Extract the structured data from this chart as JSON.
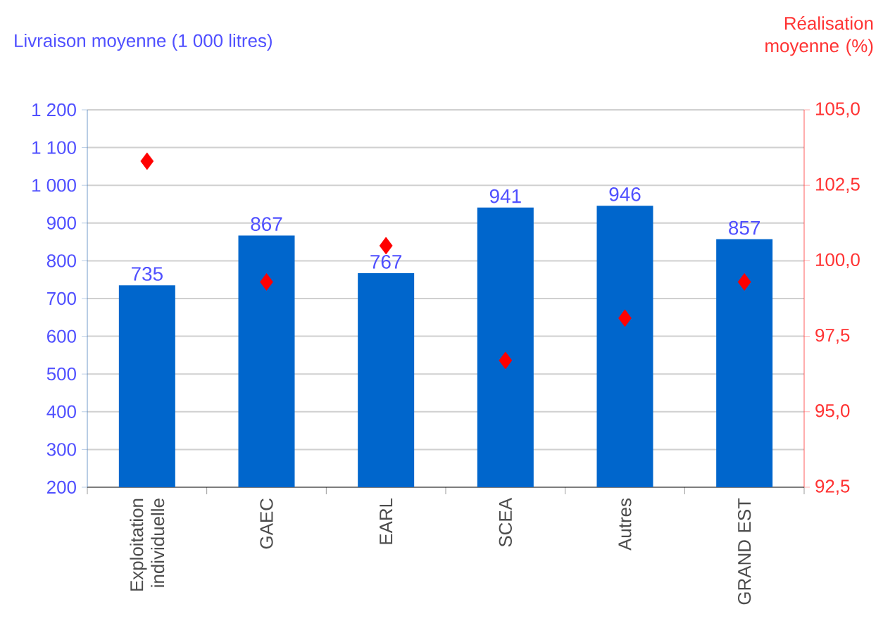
{
  "chart_data": {
    "type": "bar",
    "ylabel": "Livraison moyenne (1 000 litres)",
    "y2label": "Réalisation moyenne (%)",
    "categories": [
      "Exploitation individuelle",
      "GAEC",
      "EARL",
      "SCEA",
      "Autres",
      "GRAND EST"
    ],
    "series": [
      {
        "color": "#0066cc",
        "values": [
          735,
          867,
          767,
          941,
          946,
          857
        ],
        "value_labels": [
          "735",
          "867",
          "767",
          "941",
          "946",
          "857"
        ]
      },
      {
        "type": "scatter",
        "axis": "y2",
        "color": "#ff0000",
        "marker": "diamond",
        "values": [
          103.3,
          99.3,
          100.5,
          96.7,
          98.1,
          99.3
        ]
      }
    ],
    "ylim": [
      200,
      1200
    ],
    "yticks": [
      200,
      300,
      400,
      500,
      600,
      700,
      800,
      900,
      {
        "value": 1000,
        "label": "1 000"
      },
      {
        "value": 1100,
        "label": "1 100"
      },
      {
        "value": 1200,
        "label": "1 200"
      }
    ],
    "y2lim": [
      92.5,
      105
    ],
    "y2ticks": [
      {
        "value": 92.5,
        "label": "92,5"
      },
      {
        "value": 95,
        "label": "95,0"
      },
      {
        "value": 97.5,
        "label": "97,5"
      },
      {
        "value": 100,
        "label": "100,0"
      },
      {
        "value": 102.5,
        "label": "102,5"
      },
      {
        "value": 105,
        "label": "105,0"
      }
    ],
    "grid": "y"
  }
}
